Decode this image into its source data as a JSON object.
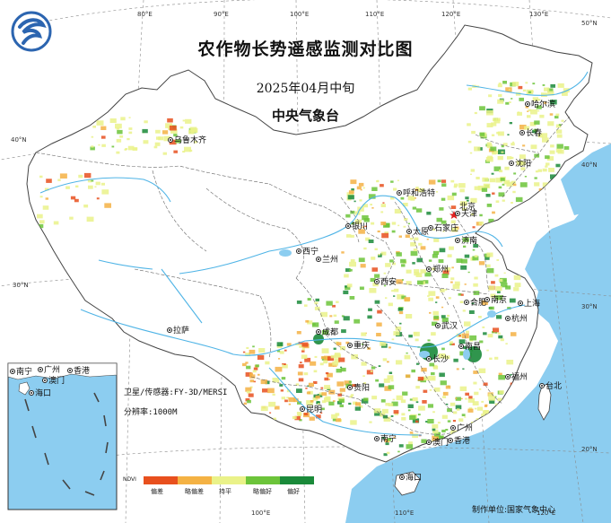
{
  "title": "农作物长势遥感监测对比图",
  "period": "2025年04月中旬",
  "agency": "中央气象台",
  "satellite_label": "卫星/传感器:FY-3D/MERSI",
  "resolution_label": "分辨率:1000M",
  "producer_label": "制作单位:国家气象中心",
  "longitude_ticks": [
    "80°E",
    "90°E",
    "100°E",
    "110°E",
    "120°E",
    "130°E"
  ],
  "longitude_ticks_bottom": [
    "100°E",
    "110°E",
    "120°E"
  ],
  "latitude_ticks": [
    "50°N",
    "40°N",
    "30°N",
    "40°N",
    "30°N",
    "20°N"
  ],
  "legend": {
    "index": "NDVI",
    "classes": [
      "偏差",
      "略偏差",
      "持平",
      "略偏好",
      "偏好"
    ],
    "colors": [
      "#e8501e",
      "#f4b244",
      "#eaf289",
      "#6cc43a",
      "#1a8a3a"
    ]
  },
  "cities": [
    "乌鲁木齐",
    "哈尔滨",
    "长春",
    "沈阳",
    "呼和浩特",
    "北京",
    "天津",
    "石家庄",
    "太原",
    "济南",
    "银川",
    "西宁",
    "兰州",
    "郑州",
    "西安",
    "合肥",
    "南京",
    "上海",
    "杭州",
    "武汉",
    "成都",
    "重庆",
    "南昌",
    "长沙",
    "福州",
    "台北",
    "贵阳",
    "拉萨",
    "昆明",
    "广州",
    "南宁",
    "澳门",
    "香港",
    "海口"
  ],
  "inset_cities": [
    "南宁",
    "广州",
    "香港",
    "澳门",
    "海口"
  ],
  "colors": {
    "sea": "#8ccdf0",
    "land": "#ffffff",
    "border": "#666666",
    "river": "#4fb4e6"
  }
}
